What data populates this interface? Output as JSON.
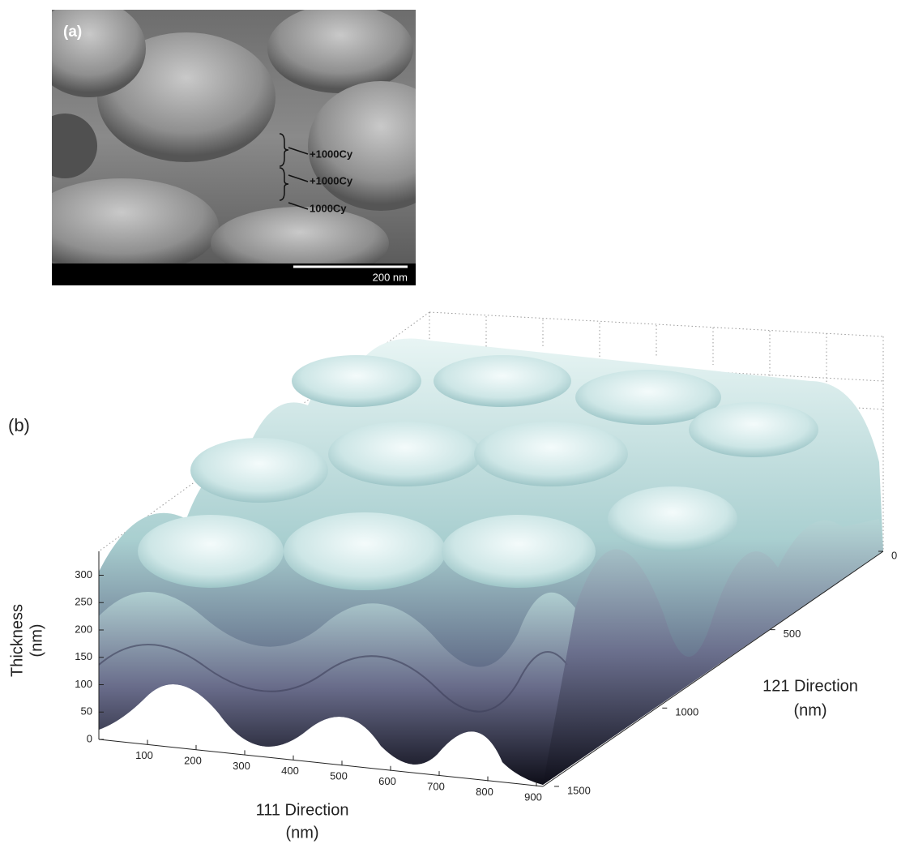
{
  "panel_a": {
    "label": "(a)",
    "annotations": [
      "+1000Cy",
      "+1000Cy",
      "1000Cy"
    ],
    "scale_bar": "200 nm"
  },
  "panel_b": {
    "label": "(b)",
    "z_axis": {
      "title": [
        "Thickness",
        "(nm)"
      ],
      "ticks": [
        0,
        50,
        100,
        150,
        200,
        250,
        300
      ]
    },
    "x_axis": {
      "title": [
        "111 Direction",
        "(nm)"
      ],
      "ticks": [
        100,
        200,
        300,
        400,
        500,
        600,
        700,
        800,
        900
      ]
    },
    "y_axis": {
      "title": [
        "121 Direction",
        "(nm)"
      ],
      "ticks": [
        0,
        500,
        1000,
        1500
      ]
    }
  }
}
